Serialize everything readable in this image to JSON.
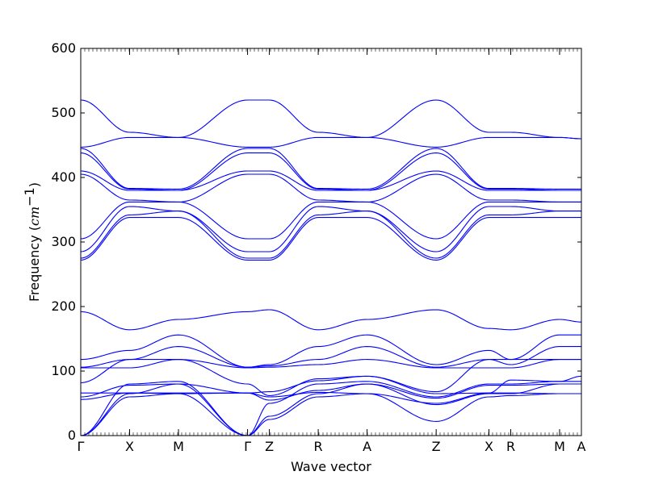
{
  "chart_data": {
    "type": "line",
    "title": "",
    "xlabel": "Wave vector",
    "ylabel_prefix": "Frequency (",
    "ylabel_unit": "cm",
    "ylabel_exp": "−1",
    "ylabel_suffix": ")",
    "ylim": [
      0,
      600
    ],
    "yticks": [
      0,
      100,
      200,
      300,
      400,
      500,
      600
    ],
    "grid": false,
    "line_color": "#0000ff",
    "k_points": [
      {
        "label": "Γ",
        "k": 0.0
      },
      {
        "label": "X",
        "k": 0.5
      },
      {
        "label": "M",
        "k": 1.0
      },
      {
        "label": "Γ",
        "k": 1.707
      },
      {
        "label": "Z",
        "k": 1.93
      },
      {
        "label": "R",
        "k": 2.43
      },
      {
        "label": "A",
        "k": 2.93
      },
      {
        "label": "Z",
        "k": 3.637
      },
      {
        "label": "X",
        "k": 4.177
      },
      {
        "label": "R",
        "k": 4.4
      },
      {
        "label": "M",
        "k": 4.9
      },
      {
        "label": "A",
        "k": 5.123
      }
    ],
    "series": [
      {
        "values": [
          [
            0,
            0
          ],
          [
            0.5,
            60
          ],
          [
            1.0,
            65
          ],
          [
            1.707,
            0
          ],
          [
            1.93,
            25
          ],
          [
            2.43,
            60
          ],
          [
            2.93,
            65
          ],
          [
            3.637,
            22
          ],
          [
            4.177,
            60
          ],
          [
            4.4,
            62
          ],
          [
            4.9,
            65
          ],
          [
            5.123,
            65
          ]
        ]
      },
      {
        "values": [
          [
            0,
            0
          ],
          [
            0.5,
            65
          ],
          [
            1.0,
            80
          ],
          [
            1.707,
            0
          ],
          [
            1.93,
            30
          ],
          [
            2.43,
            65
          ],
          [
            2.93,
            80
          ],
          [
            3.637,
            48
          ],
          [
            4.177,
            65
          ],
          [
            4.4,
            65
          ],
          [
            4.9,
            80
          ],
          [
            5.123,
            80
          ]
        ]
      },
      {
        "values": [
          [
            0,
            0
          ],
          [
            0.5,
            80
          ],
          [
            1.0,
            84
          ],
          [
            1.707,
            0
          ],
          [
            1.93,
            50
          ],
          [
            2.43,
            80
          ],
          [
            2.93,
            84
          ],
          [
            3.637,
            60
          ],
          [
            4.177,
            80
          ],
          [
            4.4,
            80
          ],
          [
            4.9,
            84
          ],
          [
            5.123,
            84
          ]
        ]
      },
      {
        "values": [
          [
            0,
            56
          ],
          [
            0.5,
            66
          ],
          [
            1.0,
            65
          ],
          [
            1.707,
            66
          ],
          [
            1.93,
            60
          ],
          [
            2.43,
            67
          ],
          [
            2.93,
            65
          ],
          [
            3.637,
            50
          ],
          [
            4.177,
            66
          ],
          [
            4.4,
            66
          ],
          [
            4.9,
            65
          ],
          [
            5.123,
            65
          ]
        ]
      },
      {
        "values": [
          [
            0,
            60
          ],
          [
            0.5,
            78
          ],
          [
            1.0,
            80
          ],
          [
            1.707,
            66
          ],
          [
            1.93,
            55
          ],
          [
            2.43,
            70
          ],
          [
            2.93,
            80
          ],
          [
            3.637,
            58
          ],
          [
            4.177,
            78
          ],
          [
            4.4,
            78
          ],
          [
            4.9,
            80
          ],
          [
            5.123,
            80
          ]
        ]
      },
      {
        "values": [
          [
            0,
            66
          ],
          [
            0.5,
            66
          ],
          [
            1.0,
            66
          ],
          [
            1.707,
            66
          ],
          [
            1.93,
            68
          ],
          [
            2.43,
            85
          ],
          [
            2.93,
            92
          ],
          [
            3.637,
            65
          ],
          [
            4.177,
            66
          ],
          [
            4.4,
            86
          ],
          [
            4.9,
            84
          ],
          [
            5.123,
            92
          ]
        ]
      },
      {
        "values": [
          [
            0,
            82
          ],
          [
            0.5,
            118
          ],
          [
            1.0,
            118
          ],
          [
            1.707,
            80
          ],
          [
            1.93,
            62
          ],
          [
            2.43,
            88
          ],
          [
            2.93,
            92
          ],
          [
            3.637,
            68
          ],
          [
            4.177,
            118
          ],
          [
            4.4,
            118
          ],
          [
            4.9,
            118
          ],
          [
            5.123,
            118
          ]
        ]
      },
      {
        "values": [
          [
            0,
            105
          ],
          [
            0.5,
            105
          ],
          [
            1.0,
            118
          ],
          [
            1.707,
            105
          ],
          [
            1.93,
            106
          ],
          [
            2.43,
            110
          ],
          [
            2.93,
            118
          ],
          [
            3.637,
            105
          ],
          [
            4.177,
            105
          ],
          [
            4.4,
            105
          ],
          [
            4.9,
            118
          ],
          [
            5.123,
            118
          ]
        ]
      },
      {
        "values": [
          [
            0,
            106
          ],
          [
            0.5,
            118
          ],
          [
            1.0,
            138
          ],
          [
            1.707,
            106
          ],
          [
            1.93,
            108
          ],
          [
            2.43,
            118
          ],
          [
            2.93,
            138
          ],
          [
            3.637,
            106
          ],
          [
            4.177,
            118
          ],
          [
            4.4,
            110
          ],
          [
            4.9,
            138
          ],
          [
            5.123,
            138
          ]
        ]
      },
      {
        "values": [
          [
            0,
            118
          ],
          [
            0.5,
            132
          ],
          [
            1.0,
            156
          ],
          [
            1.707,
            106
          ],
          [
            1.93,
            110
          ],
          [
            2.43,
            138
          ],
          [
            2.93,
            156
          ],
          [
            3.637,
            110
          ],
          [
            4.177,
            132
          ],
          [
            4.4,
            118
          ],
          [
            4.9,
            156
          ],
          [
            5.123,
            156
          ]
        ]
      },
      {
        "values": [
          [
            0,
            192
          ],
          [
            0.5,
            164
          ],
          [
            1.0,
            180
          ],
          [
            1.707,
            192
          ],
          [
            1.93,
            195
          ],
          [
            2.43,
            164
          ],
          [
            2.93,
            180
          ],
          [
            3.637,
            195
          ],
          [
            4.177,
            166
          ],
          [
            4.4,
            164
          ],
          [
            4.9,
            180
          ],
          [
            5.123,
            176
          ]
        ]
      },
      {
        "values": [
          [
            0,
            272
          ],
          [
            0.5,
            338
          ],
          [
            1.0,
            338
          ],
          [
            1.707,
            272
          ],
          [
            1.93,
            272
          ],
          [
            2.43,
            338
          ],
          [
            2.93,
            338
          ],
          [
            3.637,
            272
          ],
          [
            4.177,
            338
          ],
          [
            4.4,
            338
          ],
          [
            4.9,
            338
          ],
          [
            5.123,
            338
          ]
        ]
      },
      {
        "values": [
          [
            0,
            275
          ],
          [
            0.5,
            342
          ],
          [
            1.0,
            348
          ],
          [
            1.707,
            275
          ],
          [
            1.93,
            275
          ],
          [
            2.43,
            342
          ],
          [
            2.93,
            348
          ],
          [
            3.637,
            275
          ],
          [
            4.177,
            342
          ],
          [
            4.4,
            342
          ],
          [
            4.9,
            348
          ],
          [
            5.123,
            348
          ]
        ]
      },
      {
        "values": [
          [
            0,
            285
          ],
          [
            0.5,
            355
          ],
          [
            1.0,
            348
          ],
          [
            1.707,
            285
          ],
          [
            1.93,
            285
          ],
          [
            2.43,
            355
          ],
          [
            2.93,
            348
          ],
          [
            3.637,
            285
          ],
          [
            4.177,
            355
          ],
          [
            4.4,
            355
          ],
          [
            4.9,
            348
          ],
          [
            5.123,
            348
          ]
        ]
      },
      {
        "values": [
          [
            0,
            305
          ],
          [
            0.5,
            362
          ],
          [
            1.0,
            362
          ],
          [
            1.707,
            305
          ],
          [
            1.93,
            305
          ],
          [
            2.43,
            362
          ],
          [
            2.93,
            362
          ],
          [
            3.637,
            305
          ],
          [
            4.177,
            362
          ],
          [
            4.4,
            362
          ],
          [
            4.9,
            362
          ],
          [
            5.123,
            362
          ]
        ]
      },
      {
        "values": [
          [
            0,
            405
          ],
          [
            0.5,
            365
          ],
          [
            1.0,
            362
          ],
          [
            1.707,
            405
          ],
          [
            1.93,
            405
          ],
          [
            2.43,
            365
          ],
          [
            2.93,
            362
          ],
          [
            3.637,
            405
          ],
          [
            4.177,
            365
          ],
          [
            4.4,
            365
          ],
          [
            4.9,
            362
          ],
          [
            5.123,
            362
          ]
        ]
      },
      {
        "values": [
          [
            0,
            410
          ],
          [
            0.5,
            380
          ],
          [
            1.0,
            380
          ],
          [
            1.707,
            410
          ],
          [
            1.93,
            410
          ],
          [
            2.43,
            380
          ],
          [
            2.93,
            380
          ],
          [
            3.637,
            410
          ],
          [
            4.177,
            380
          ],
          [
            4.4,
            380
          ],
          [
            4.9,
            380
          ],
          [
            5.123,
            380
          ]
        ]
      },
      {
        "values": [
          [
            0,
            438
          ],
          [
            0.5,
            382
          ],
          [
            1.0,
            380
          ],
          [
            1.707,
            438
          ],
          [
            1.93,
            438
          ],
          [
            2.43,
            382
          ],
          [
            2.93,
            380
          ],
          [
            3.637,
            438
          ],
          [
            4.177,
            382
          ],
          [
            4.4,
            382
          ],
          [
            4.9,
            380
          ],
          [
            5.123,
            380
          ]
        ]
      },
      {
        "values": [
          [
            0,
            445
          ],
          [
            0.5,
            383
          ],
          [
            1.0,
            382
          ],
          [
            1.707,
            445
          ],
          [
            1.93,
            445
          ],
          [
            2.43,
            383
          ],
          [
            2.93,
            382
          ],
          [
            3.637,
            445
          ],
          [
            4.177,
            383
          ],
          [
            4.4,
            383
          ],
          [
            4.9,
            382
          ],
          [
            5.123,
            382
          ]
        ]
      },
      {
        "values": [
          [
            0,
            447
          ],
          [
            0.5,
            462
          ],
          [
            1.0,
            462
          ],
          [
            1.707,
            447
          ],
          [
            1.93,
            447
          ],
          [
            2.43,
            462
          ],
          [
            2.93,
            462
          ],
          [
            3.637,
            447
          ],
          [
            4.177,
            462
          ],
          [
            4.4,
            462
          ],
          [
            4.9,
            462
          ],
          [
            5.123,
            460
          ]
        ]
      },
      {
        "values": [
          [
            0,
            520
          ],
          [
            0.5,
            470
          ],
          [
            1.0,
            462
          ],
          [
            1.707,
            520
          ],
          [
            1.93,
            520
          ],
          [
            2.43,
            470
          ],
          [
            2.93,
            462
          ],
          [
            3.637,
            520
          ],
          [
            4.177,
            470
          ],
          [
            4.4,
            470
          ],
          [
            4.9,
            462
          ],
          [
            5.123,
            460
          ]
        ]
      }
    ]
  }
}
